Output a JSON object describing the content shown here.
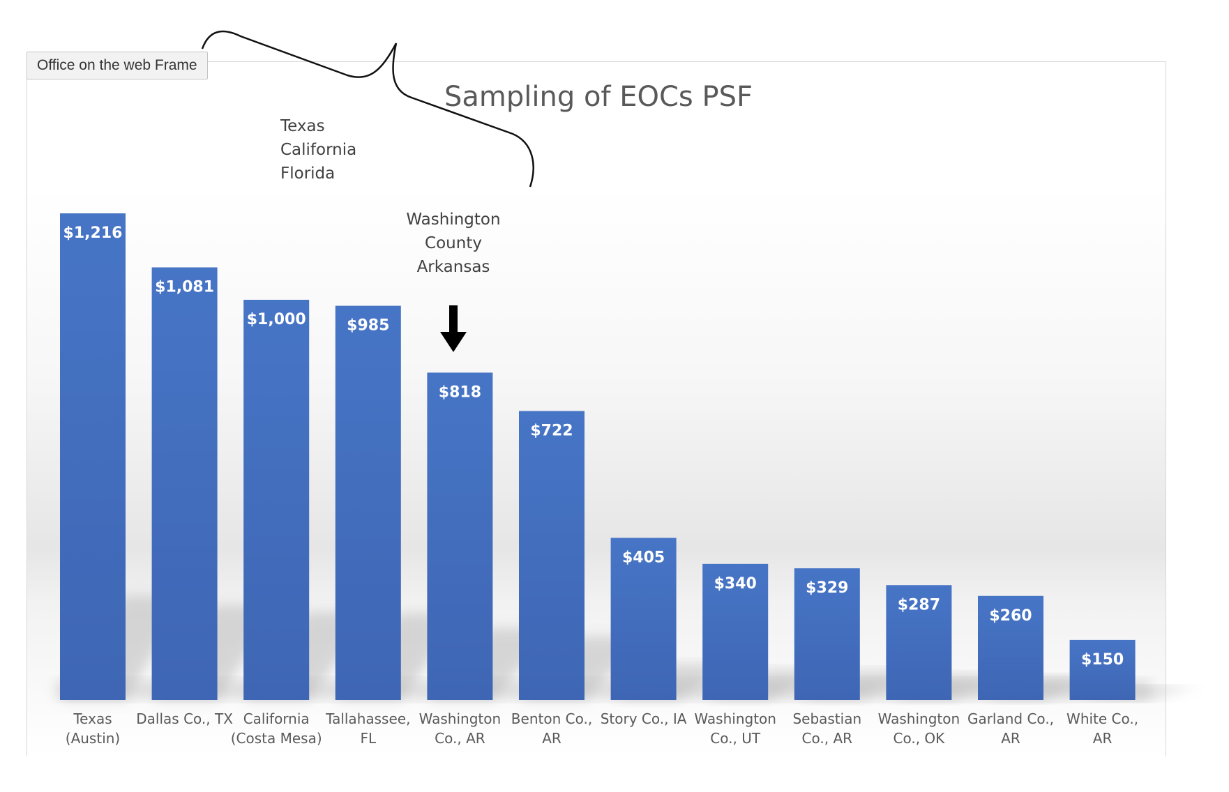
{
  "frame": {
    "label": "Office on the web Frame"
  },
  "annotations": {
    "group_lines": [
      "Texas",
      "California",
      "Florida"
    ],
    "highlight_lines": [
      "Washington",
      "County",
      "Arkansas"
    ]
  },
  "colors": {
    "bar": "#4472c4",
    "bar_dark": "#3a62b0",
    "title": "#595959",
    "axis_text": "#595959",
    "value_text": "#ffffff",
    "arrow": "#000000"
  },
  "chart_data": {
    "type": "bar",
    "title": "Sampling of EOCs PSF",
    "xlabel": "",
    "ylabel": "",
    "ylim": [
      0,
      1216
    ],
    "grid": false,
    "categories": [
      [
        "Texas",
        "(Austin)"
      ],
      [
        "Dallas Co., TX"
      ],
      [
        "California",
        "(Costa Mesa)"
      ],
      [
        "Tallahassee,",
        "FL"
      ],
      [
        "Washington",
        "Co., AR"
      ],
      [
        "Benton Co.,",
        "AR"
      ],
      [
        "Story Co., IA"
      ],
      [
        "Washington",
        "Co., UT"
      ],
      [
        "Sebastian",
        "Co., AR"
      ],
      [
        "Washington",
        "Co., OK"
      ],
      [
        "Garland Co.,",
        "AR"
      ],
      [
        "White Co.,",
        "AR"
      ]
    ],
    "values": [
      1216,
      1081,
      1000,
      985,
      818,
      722,
      405,
      340,
      329,
      287,
      260,
      150
    ],
    "value_labels": [
      "$1,216",
      "$1,081",
      "$1,000",
      "$985",
      "$818",
      "$722",
      "$405",
      "$340",
      "$329",
      "$287",
      "$260",
      "$150"
    ],
    "highlight_index": 4
  }
}
